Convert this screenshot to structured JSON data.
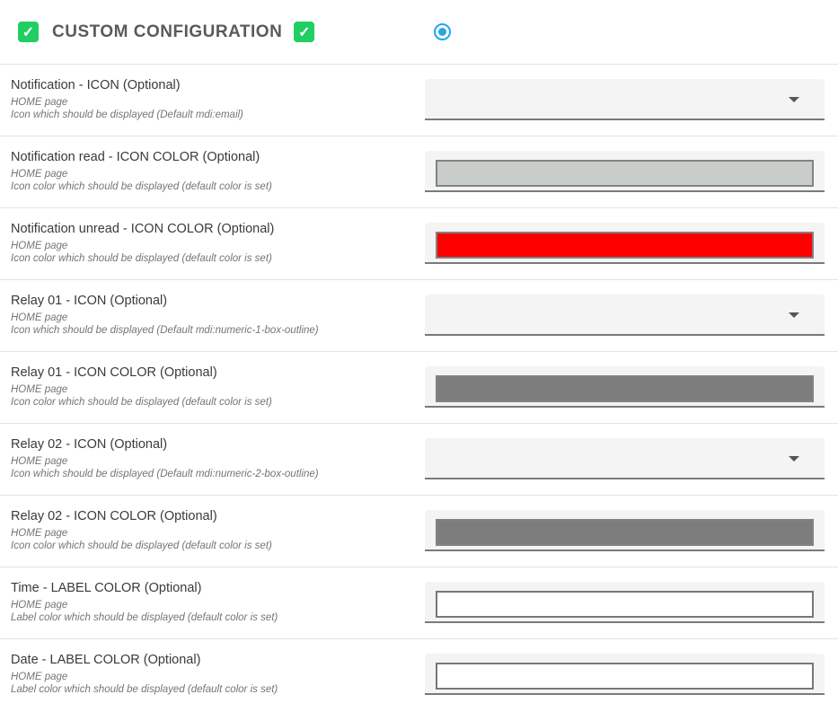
{
  "header": {
    "title": "CUSTOM CONFIGURATION",
    "left_checkbox_checked": true,
    "right_checkbox_checked": true,
    "radio_selected": true,
    "checkbox_color": "#21ce61",
    "radio_color": "#22a7e8",
    "checkmark_glyph": "✓"
  },
  "rows": [
    {
      "title": "Notification - ICON (Optional)",
      "subtitle": "HOME page",
      "description": "Icon which should be displayed (Default mdi:email)",
      "control": "select",
      "value": ""
    },
    {
      "title": "Notification read - ICON COLOR (Optional)",
      "subtitle": "HOME page",
      "description": "Icon color which should be displayed (default color is set)",
      "control": "color-swatch",
      "swatch_color": "#c9cdc9"
    },
    {
      "title": "Notification unread - ICON COLOR (Optional)",
      "subtitle": "HOME page",
      "description": "Icon color which should be displayed (default color is set)",
      "control": "color-swatch",
      "swatch_color": "#ff0000"
    },
    {
      "title": "Relay 01 - ICON (Optional)",
      "subtitle": "HOME page",
      "description": "Icon which should be displayed (Default mdi:numeric-1-box-outline)",
      "control": "select",
      "value": ""
    },
    {
      "title": "Relay 01 - ICON COLOR (Optional)",
      "subtitle": "HOME page",
      "description": "Icon color which should be displayed (default color is set)",
      "control": "color-swatch",
      "swatch_color": "#7d7d7d"
    },
    {
      "title": "Relay 02 - ICON (Optional)",
      "subtitle": "HOME page",
      "description": "Icon which should be displayed (Default mdi:numeric-2-box-outline)",
      "control": "select",
      "value": ""
    },
    {
      "title": "Relay 02 - ICON COLOR (Optional)",
      "subtitle": "HOME page",
      "description": "Icon color which should be displayed (default color is set)",
      "control": "color-swatch",
      "swatch_color": "#7d7d7d"
    },
    {
      "title": "Time - LABEL COLOR (Optional)",
      "subtitle": "HOME page",
      "description": "Label color which should be displayed (default color is set)",
      "control": "text-input",
      "value": ""
    },
    {
      "title": "Date - LABEL COLOR (Optional)",
      "subtitle": "HOME page",
      "description": "Label color which should be displayed (default color is set)",
      "control": "text-input",
      "value": ""
    }
  ]
}
